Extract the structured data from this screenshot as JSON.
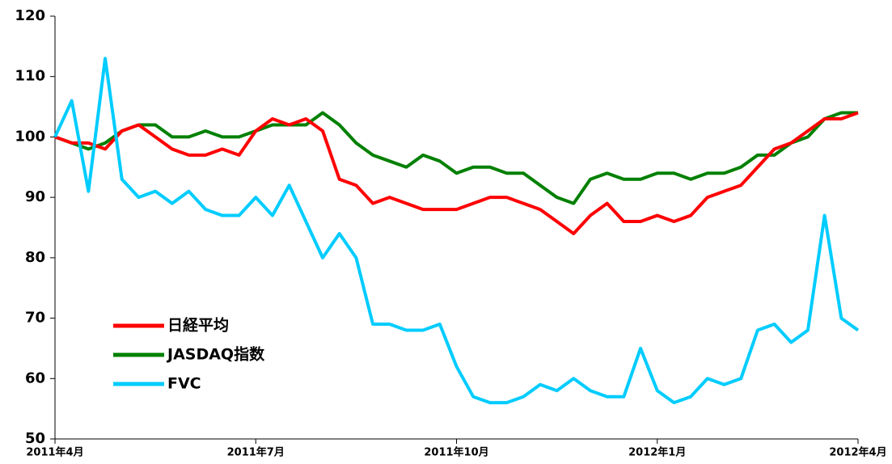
{
  "chart_data": {
    "type": "line",
    "categories": [
      "2011年4月",
      null,
      null,
      null,
      null,
      null,
      null,
      null,
      null,
      null,
      null,
      null,
      "2011年7月",
      null,
      null,
      null,
      null,
      null,
      null,
      null,
      null,
      null,
      null,
      null,
      "2011年10月",
      null,
      null,
      null,
      null,
      null,
      null,
      null,
      null,
      null,
      null,
      null,
      "2012年1月",
      null,
      null,
      null,
      null,
      null,
      null,
      null,
      null,
      null,
      null,
      null,
      "2012年4月"
    ],
    "series": [
      {
        "name": "日経平均",
        "color": "#ff0000",
        "values": [
          100,
          99,
          99,
          98,
          101,
          102,
          100,
          98,
          97,
          97,
          98,
          97,
          101,
          103,
          102,
          103,
          101,
          93,
          92,
          89,
          90,
          89,
          88,
          88,
          88,
          89,
          90,
          90,
          89,
          88,
          86,
          84,
          87,
          89,
          86,
          86,
          87,
          86,
          87,
          90,
          91,
          92,
          95,
          98,
          99,
          101,
          103,
          103,
          104
        ]
      },
      {
        "name": "JASDAQ指数",
        "color": "#008000",
        "values": [
          100,
          99,
          98,
          99,
          101,
          102,
          102,
          100,
          100,
          101,
          100,
          100,
          101,
          102,
          102,
          102,
          104,
          102,
          99,
          97,
          96,
          95,
          97,
          96,
          94,
          95,
          95,
          94,
          94,
          92,
          90,
          89,
          93,
          94,
          93,
          93,
          94,
          94,
          93,
          94,
          94,
          95,
          97,
          97,
          99,
          100,
          103,
          104,
          104
        ]
      },
      {
        "name": "FVC",
        "color": "#00ccff",
        "values": [
          100,
          106,
          91,
          113,
          93,
          90,
          91,
          89,
          91,
          88,
          87,
          87,
          90,
          87,
          92,
          86,
          80,
          84,
          80,
          69,
          69,
          68,
          68,
          69,
          62,
          57,
          56,
          56,
          57,
          59,
          58,
          60,
          58,
          57,
          57,
          65,
          58,
          56,
          57,
          60,
          59,
          60,
          68,
          69,
          66,
          68,
          87,
          70,
          68
        ]
      }
    ],
    "ylim": [
      50,
      120
    ],
    "yticks": [
      50,
      60,
      70,
      80,
      90,
      100,
      110,
      120
    ]
  }
}
